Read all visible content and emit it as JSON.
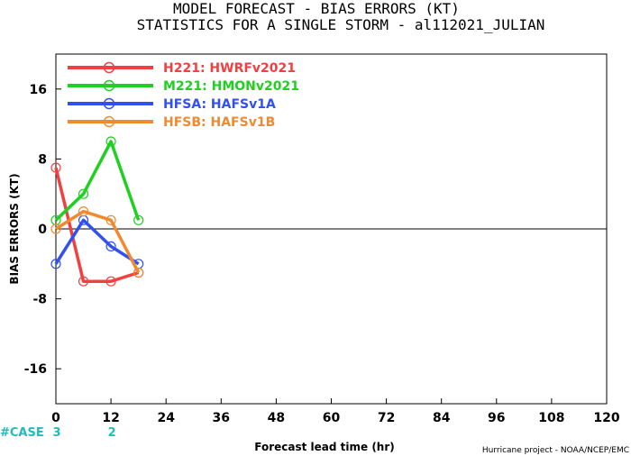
{
  "title_line1": "MODEL FORECAST - BIAS ERRORS (KT)",
  "title_line2": "STATISTICS FOR A SINGLE STORM - al112021_JULIAN",
  "credit": "Hurricane project - NOAA/NCEP/EMC",
  "case_label": "#CASE",
  "chart_data": {
    "type": "line",
    "xlabel": "Forecast lead time (hr)",
    "ylabel": "BIAS ERRORS (KT)",
    "xlim": [
      0,
      120
    ],
    "ylim": [
      -20,
      20
    ],
    "xticks": [
      "0",
      "12",
      "24",
      "36",
      "48",
      "60",
      "72",
      "84",
      "96",
      "108",
      "120"
    ],
    "yticks": [
      "16",
      "8",
      "0",
      "-8",
      "-16"
    ],
    "legend_position": "top-left",
    "series": [
      {
        "name": "H221: HWRFv2021",
        "color": "#f04040",
        "x": [
          0,
          6,
          12,
          18
        ],
        "values": [
          7,
          -6,
          -6,
          -5
        ]
      },
      {
        "name": "M221: HMONv2021",
        "color": "#20d020",
        "x": [
          0,
          6,
          12,
          18
        ],
        "values": [
          1,
          4,
          10,
          1
        ]
      },
      {
        "name": "HFSA: HAFSv1A",
        "color": "#3050f0",
        "x": [
          0,
          6,
          12,
          18
        ],
        "values": [
          -4,
          1,
          -2,
          -4
        ]
      },
      {
        "name": "HFSB: HAFSv1B",
        "color": "#f08a30",
        "x": [
          0,
          6,
          12,
          18
        ],
        "values": [
          0,
          2,
          1,
          -5
        ]
      }
    ],
    "case_counts": [
      {
        "x": 0,
        "label": "3"
      },
      {
        "x": 12,
        "label": "2"
      }
    ]
  }
}
